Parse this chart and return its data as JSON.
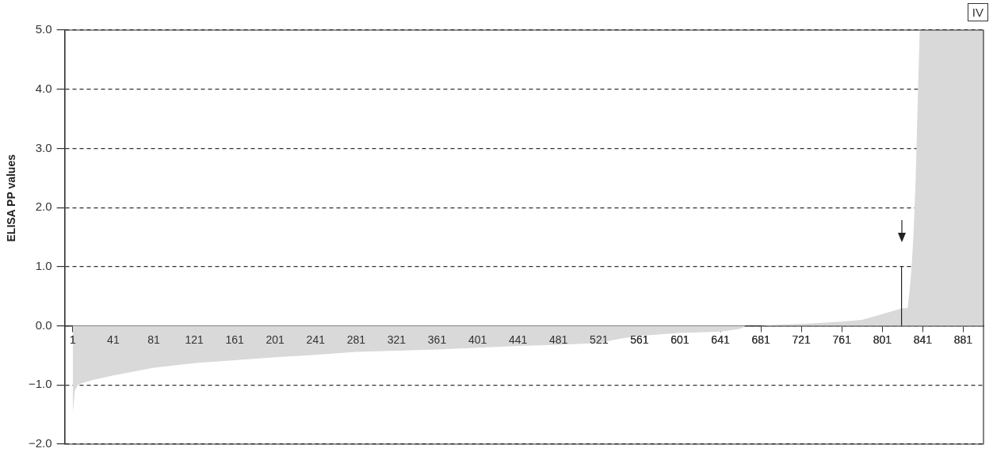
{
  "chart_data": {
    "type": "area",
    "ylabel": "ELISA PP values",
    "annotations": [
      "IV"
    ],
    "x": [
      1,
      3,
      6,
      10,
      20,
      41,
      81,
      121,
      161,
      201,
      241,
      281,
      321,
      361,
      401,
      441,
      481,
      521,
      541,
      561,
      601,
      641,
      661,
      666,
      681,
      701,
      721,
      761,
      781,
      801,
      811,
      821,
      826,
      828,
      830,
      832,
      834,
      836,
      838,
      870,
      901
    ],
    "series": [
      {
        "color": "#d9d9d9",
        "values": [
          -1.5,
          -1.1,
          -1.0,
          -0.97,
          -0.92,
          -0.84,
          -0.71,
          -0.63,
          -0.58,
          -0.53,
          -0.49,
          -0.44,
          -0.42,
          -0.4,
          -0.37,
          -0.34,
          -0.32,
          -0.29,
          -0.22,
          -0.17,
          -0.12,
          -0.1,
          -0.05,
          0,
          0,
          0.02,
          0.03,
          0.07,
          0.1,
          0.2,
          0.25,
          0.3,
          0.3,
          0.6,
          1.0,
          1.6,
          2.5,
          3.8,
          5.0,
          5.0,
          5.0
        ]
      }
    ],
    "xlim": [
      -7,
      901
    ],
    "xticks": [
      1,
      41,
      81,
      121,
      161,
      201,
      241,
      281,
      321,
      361,
      401,
      441,
      481,
      521,
      561,
      601,
      641,
      681,
      721,
      761,
      801,
      841,
      881
    ],
    "ylim": [
      -2,
      5
    ],
    "yticks": [
      {
        "value": -2,
        "label": "−2.0"
      },
      {
        "value": -1,
        "label": "−1.0"
      },
      {
        "value": 0,
        "label": "0.0"
      },
      {
        "value": 1,
        "label": "1.0"
      },
      {
        "value": 2,
        "label": "2.0"
      },
      {
        "value": 3,
        "label": "3.0"
      },
      {
        "value": 4,
        "label": "4.0"
      },
      {
        "value": 5,
        "label": "5.0"
      }
    ],
    "grid": "y",
    "line_style": "dashed",
    "marker": "none",
    "legend": false,
    "ref_lines": [
      {
        "axis": "x",
        "value": 820,
        "color": "#222222",
        "line_style": "solid"
      }
    ]
  }
}
